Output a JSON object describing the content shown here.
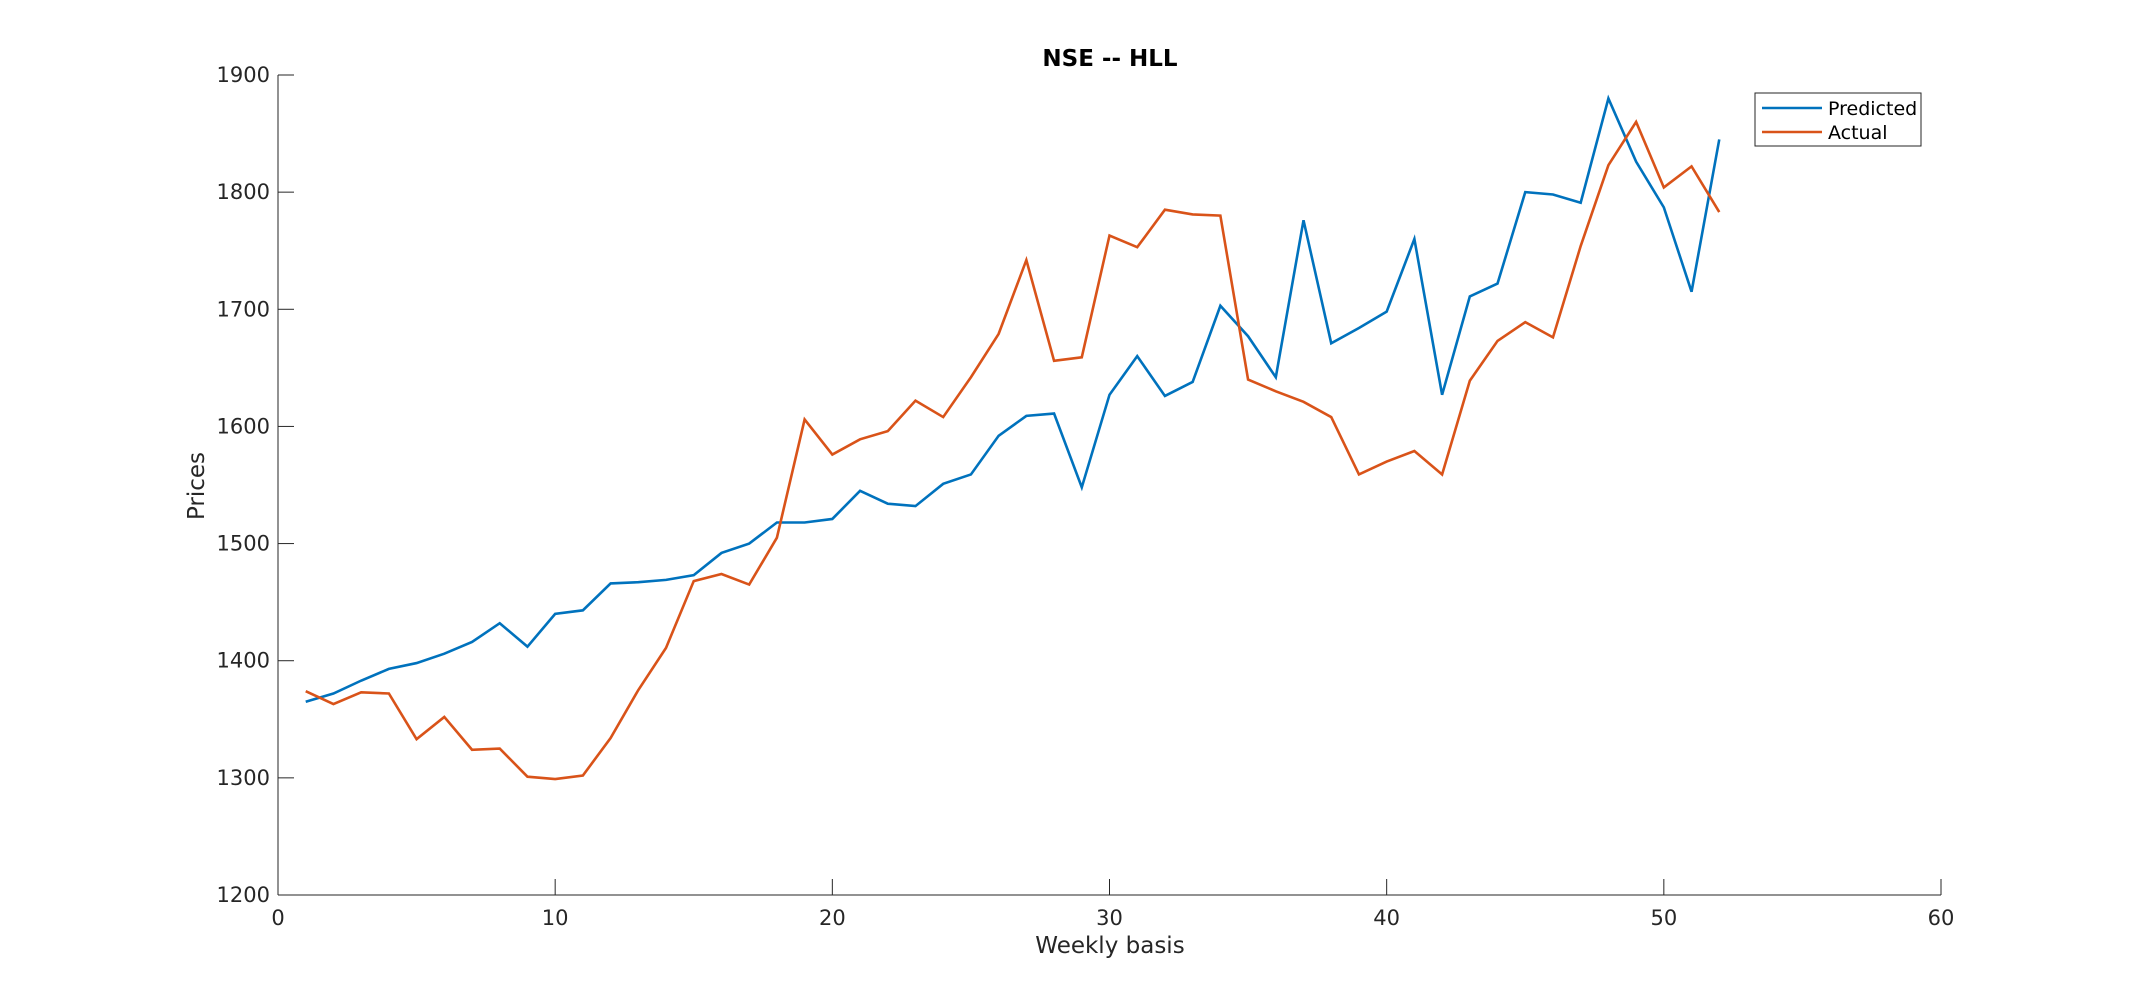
{
  "chart_data": {
    "type": "line",
    "title": "NSE -- HLL",
    "xlabel": "Weekly basis",
    "ylabel": "Prices",
    "xlim": [
      0,
      60
    ],
    "ylim": [
      1200,
      1900
    ],
    "xticks": [
      0,
      10,
      20,
      30,
      40,
      50,
      60
    ],
    "yticks": [
      1200,
      1300,
      1400,
      1500,
      1600,
      1700,
      1800,
      1900
    ],
    "grid": false,
    "legend_position": "top-right",
    "x": [
      1,
      2,
      3,
      4,
      5,
      6,
      7,
      8,
      9,
      10,
      11,
      12,
      13,
      14,
      15,
      16,
      17,
      18,
      19,
      20,
      21,
      22,
      23,
      24,
      25,
      26,
      27,
      28,
      29,
      30,
      31,
      32,
      33,
      34,
      35,
      36,
      37,
      38,
      39,
      40,
      41,
      42,
      43,
      44,
      45,
      46,
      47,
      48,
      49,
      50,
      51,
      52
    ],
    "series": [
      {
        "name": "Predicted",
        "color": "#0072BD",
        "values": [
          1365,
          1372,
          1383,
          1393,
          1398,
          1406,
          1416,
          1432,
          1412,
          1440,
          1443,
          1466,
          1467,
          1469,
          1473,
          1492,
          1500,
          1518,
          1518,
          1521,
          1545,
          1534,
          1532,
          1551,
          1559,
          1592,
          1609,
          1611,
          1548,
          1627,
          1660,
          1626,
          1638,
          1703,
          1677,
          1642,
          1776,
          1671,
          1684,
          1698,
          1760,
          1627,
          1711,
          1722,
          1800,
          1798,
          1791,
          1880,
          1826,
          1787,
          1715,
          1845
        ]
      },
      {
        "name": "Actual",
        "color": "#D95319",
        "values": [
          1374,
          1363,
          1373,
          1372,
          1333,
          1352,
          1324,
          1325,
          1301,
          1299,
          1302,
          1334,
          1375,
          1411,
          1468,
          1474,
          1465,
          1505,
          1606,
          1576,
          1589,
          1596,
          1622,
          1608,
          1642,
          1679,
          1742,
          1656,
          1659,
          1763,
          1753,
          1785,
          1781,
          1780,
          1640,
          1630,
          1621,
          1608,
          1559,
          1570,
          1579,
          1559,
          1639,
          1673,
          1689,
          1676,
          1754,
          1823,
          1860,
          1804,
          1822,
          1783
        ]
      }
    ]
  }
}
